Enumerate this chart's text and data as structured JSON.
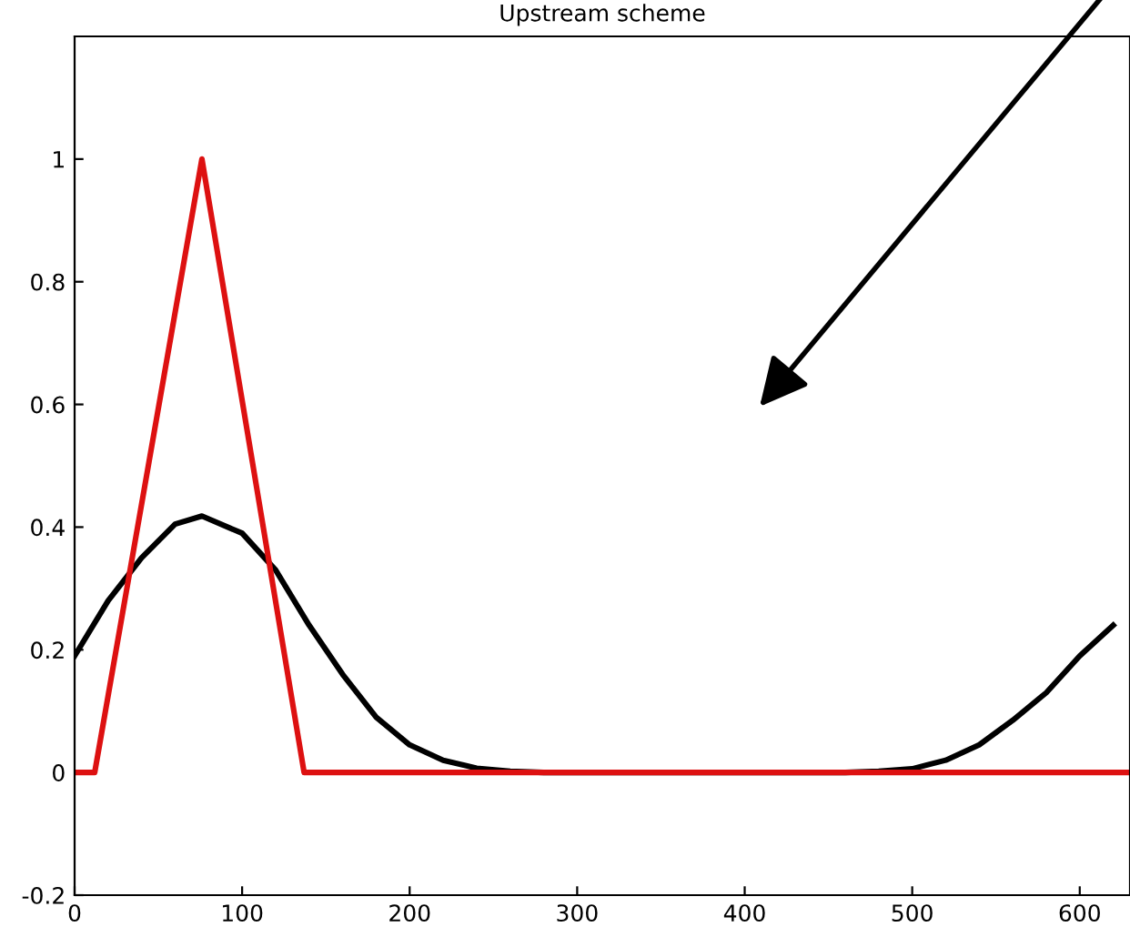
{
  "chart_data": {
    "type": "line",
    "title": "Upstream scheme",
    "xlim": [
      0,
      630
    ],
    "ylim": [
      -0.2,
      1.2
    ],
    "xticks": [
      0,
      100,
      200,
      300,
      400,
      500,
      600
    ],
    "yticks": [
      -0.2,
      0,
      0.2,
      0.4,
      0.6,
      0.8,
      1
    ],
    "grid": false,
    "legend": false,
    "marker": "none",
    "line_style": "solid",
    "series": [
      {
        "color": "#000000",
        "x": [
          0,
          20,
          40,
          60,
          76,
          100,
          120,
          140,
          160,
          180,
          200,
          220,
          240,
          260,
          280,
          460,
          480,
          500,
          520,
          540,
          560,
          580,
          600,
          620
        ],
        "values": [
          0.19,
          0.28,
          0.35,
          0.405,
          0.418,
          0.39,
          0.33,
          0.24,
          0.16,
          0.09,
          0.045,
          0.02,
          0.007,
          0.002,
          0,
          0,
          0.002,
          0.006,
          0.02,
          0.045,
          0.085,
          0.13,
          0.19,
          0.24
        ]
      },
      {
        "color": "#dd1111",
        "x": [
          0,
          12,
          76,
          137,
          630
        ],
        "values": [
          0,
          0,
          1,
          0,
          0
        ]
      }
    ]
  }
}
